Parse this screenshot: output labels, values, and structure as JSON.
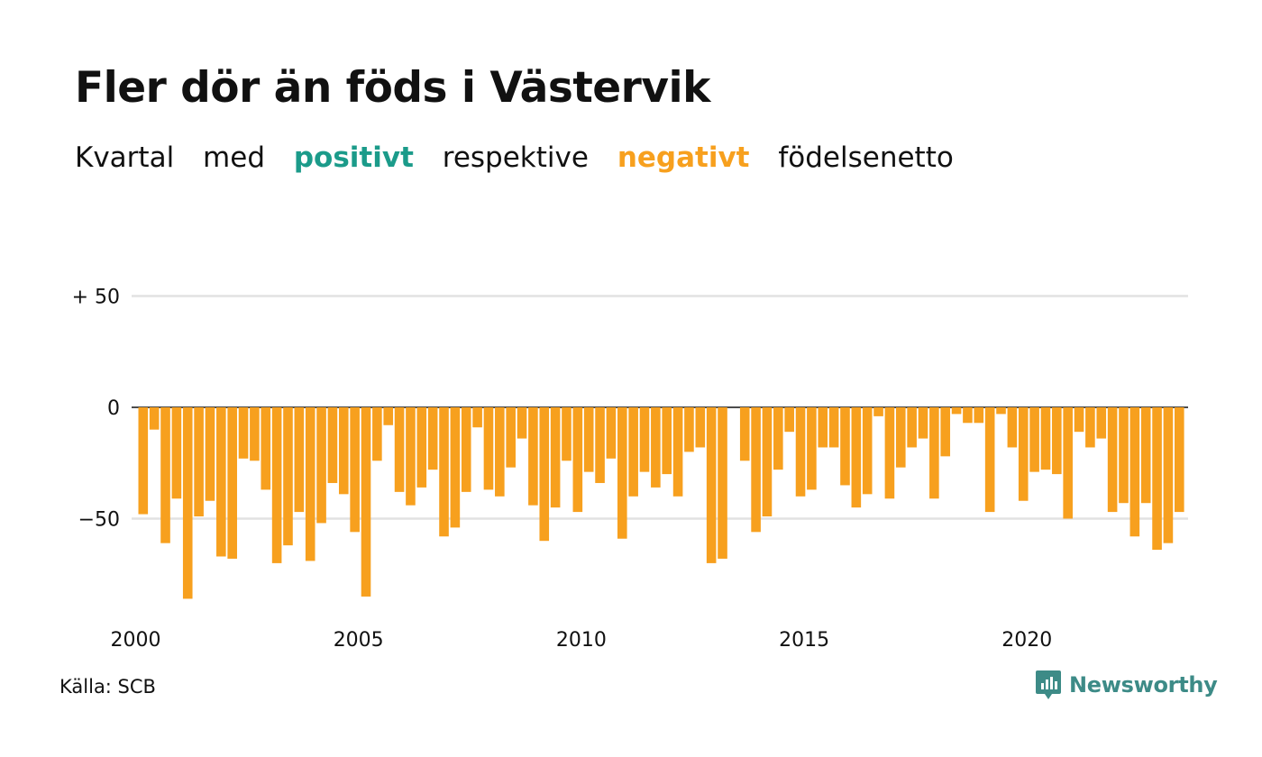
{
  "title": "Fler dör än föds i Västervik",
  "subtitle": {
    "part1": "Kvartal",
    "part2": "med",
    "positive": "positivt",
    "part3": "respektive",
    "negative": "negativt",
    "part4": "födelsenetto"
  },
  "source": "Källa: SCB",
  "brand": {
    "name": "Newsworthy",
    "icon": "newsworthy-logo-icon",
    "color": "#3d8b87"
  },
  "colors": {
    "positive": "#1b9b8a",
    "negative": "#f7a01e",
    "grid": "#e2e2e2",
    "zero": "#111111"
  },
  "chart_data": {
    "type": "bar",
    "title": "Fler dör än föds i Västervik",
    "xlabel": "",
    "ylabel": "",
    "ylim": [
      -85,
      50
    ],
    "y_ticks": [
      {
        "value": 50,
        "label": "+ 50"
      },
      {
        "value": 0,
        "label": "0"
      },
      {
        "value": -50,
        "label": "−50"
      }
    ],
    "x_ticks": [
      {
        "year": 2000,
        "label": "2000"
      },
      {
        "year": 2005,
        "label": "2005"
      },
      {
        "year": 2010,
        "label": "2010"
      },
      {
        "year": 2015,
        "label": "2015"
      },
      {
        "year": 2020,
        "label": "2020"
      }
    ],
    "start_year": 2000,
    "grid": true,
    "values": [
      -48,
      -10,
      -61,
      -41,
      -86,
      -49,
      -42,
      -67,
      -68,
      -23,
      -24,
      -37,
      -70,
      -62,
      -47,
      -69,
      -52,
      -34,
      -39,
      -56,
      -85,
      -24,
      -8,
      -38,
      -44,
      -36,
      -28,
      -58,
      -54,
      -38,
      -9,
      -37,
      -40,
      -27,
      -14,
      -44,
      -60,
      -45,
      -24,
      -47,
      -29,
      -34,
      -23,
      -59,
      -40,
      -29,
      -36,
      -30,
      -40,
      -20,
      -18,
      -70,
      -68,
      0,
      -24,
      -56,
      -49,
      -28,
      -11,
      -40,
      -37,
      -18,
      -18,
      -35,
      -45,
      -39,
      -4,
      -41,
      -27,
      -18,
      -14,
      -41,
      -22,
      -3,
      -7,
      -7,
      -47,
      -3,
      -18,
      -42,
      -29,
      -28,
      -30,
      -50,
      -11,
      -18,
      -14,
      -47,
      -43,
      -58,
      -43,
      -64,
      -61,
      -47
    ]
  }
}
